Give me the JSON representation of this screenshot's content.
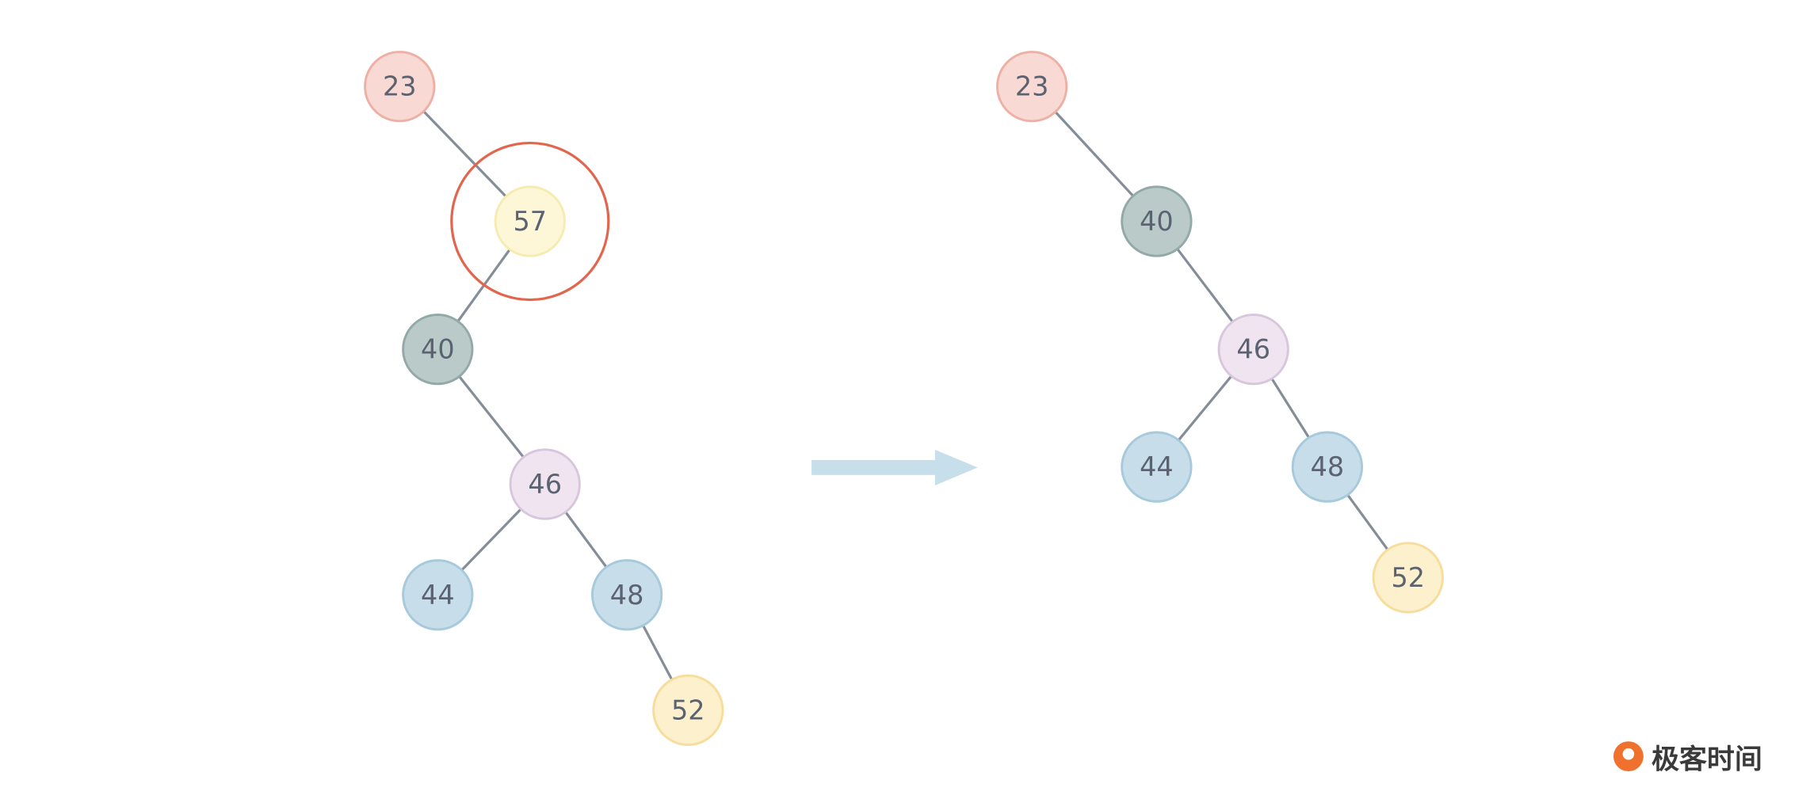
{
  "left_tree": {
    "nodes": [
      {
        "label": "23"
      },
      {
        "label": "57"
      },
      {
        "label": "40"
      },
      {
        "label": "46"
      },
      {
        "label": "44"
      },
      {
        "label": "48"
      },
      {
        "label": "52"
      }
    ]
  },
  "right_tree": {
    "nodes": [
      {
        "label": "23"
      },
      {
        "label": "40"
      },
      {
        "label": "46"
      },
      {
        "label": "44"
      },
      {
        "label": "48"
      },
      {
        "label": "52"
      }
    ]
  },
  "logo": {
    "text": "极客时间"
  }
}
